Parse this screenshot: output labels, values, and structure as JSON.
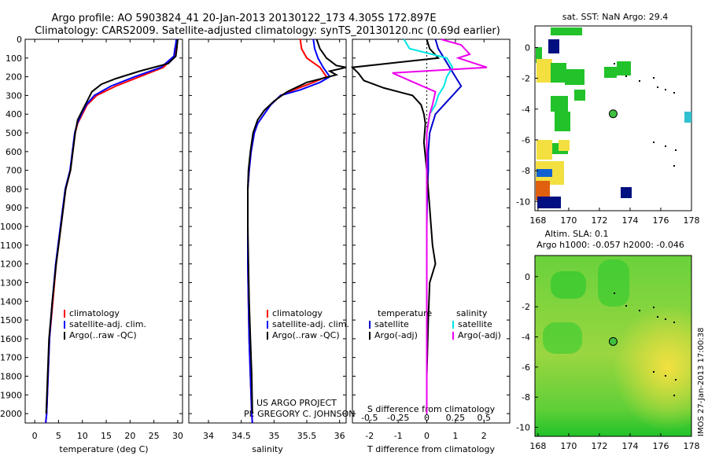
{
  "header": {
    "line1": "Argo profile: AO 5903824_41 20-Jan-2013 20130122_173 4.305S 172.897E",
    "line2": "Climatology: CARS2009. Satellite-adjusted climatology: synTS_20130120.nc (0.69d earlier)"
  },
  "side_stamp": "IMOS 27-Jan-2013 17:00:38",
  "chart_data": [
    {
      "id": "temperature",
      "type": "line",
      "xlabel": "temperature (deg C)",
      "ylabel": "",
      "xlim": [
        -2,
        31
      ],
      "ylim": [
        2050,
        0
      ],
      "xticks": [
        "0",
        "5",
        "10",
        "15",
        "20",
        "25",
        "30"
      ],
      "yticks": [
        "0",
        "100",
        "200",
        "300",
        "400",
        "500",
        "600",
        "700",
        "800",
        "900",
        "1000",
        "1100",
        "1200",
        "1300",
        "1400",
        "1500",
        "1600",
        "1700",
        "1800",
        "1900",
        "2000"
      ],
      "legend": [
        "climatology",
        "satellite-adj. clim.",
        "Argo(..raw -QC)"
      ],
      "series": [
        {
          "name": "climatology",
          "color": "#ff0000",
          "x": [
            29.8,
            29.7,
            29.5,
            29.3,
            27,
            22,
            17,
            13,
            11,
            10,
            9,
            8.5,
            8,
            7.5,
            6.5,
            5.5,
            4.5,
            3.8,
            3.1,
            2.8,
            2.5,
            2.3
          ],
          "y": [
            0,
            25,
            50,
            90,
            150,
            200,
            250,
            300,
            350,
            400,
            450,
            500,
            600,
            700,
            800,
            1000,
            1200,
            1400,
            1600,
            1800,
            2000,
            2050
          ]
        },
        {
          "name": "satellite-adj. clim.",
          "color": "#0000ff",
          "x": [
            29.7,
            29.6,
            29.4,
            29.2,
            26.5,
            21,
            16,
            12.5,
            10.8,
            9.8,
            8.9,
            8.4,
            7.9,
            7.4,
            6.4,
            5.4,
            4.4,
            3.7,
            3.1,
            2.8,
            2.5,
            2.3
          ],
          "y": [
            0,
            25,
            50,
            90,
            150,
            200,
            250,
            300,
            350,
            400,
            450,
            500,
            600,
            700,
            800,
            1000,
            1200,
            1400,
            1600,
            1800,
            2000,
            2050
          ]
        },
        {
          "name": "Argo(..raw -QC)",
          "color": "#000000",
          "x": [
            30,
            29.9,
            29.8,
            29.6,
            28,
            22,
            17,
            14,
            12,
            11,
            10,
            9,
            8.5,
            8,
            7.5,
            6.5,
            5.5,
            4.5,
            3.7,
            3,
            2.7,
            2.4
          ],
          "y": [
            0,
            25,
            50,
            90,
            130,
            170,
            210,
            240,
            280,
            330,
            380,
            430,
            500,
            600,
            700,
            800,
            1000,
            1200,
            1400,
            1600,
            1800,
            2000
          ]
        }
      ]
    },
    {
      "id": "salinity",
      "type": "line",
      "xlabel": "salinity",
      "ylabel": "",
      "xlim": [
        33.7,
        36.1
      ],
      "ylim": [
        2050,
        0
      ],
      "xticks": [
        "34",
        "34.5",
        "35",
        "35.5",
        "36"
      ],
      "legend": [
        "climatology",
        "satellite-adj. clim.",
        "Argo(..raw -QC)"
      ],
      "series": [
        {
          "name": "climatology",
          "color": "#ff0000",
          "x": [
            35.4,
            35.42,
            35.5,
            35.7,
            35.8,
            35.6,
            35.3,
            35.1,
            34.95,
            34.85,
            34.75,
            34.7,
            34.65,
            34.62,
            34.6,
            34.6,
            34.6,
            34.61,
            34.62,
            34.64,
            34.66,
            34.67
          ],
          "y": [
            0,
            50,
            100,
            150,
            200,
            230,
            270,
            300,
            350,
            400,
            450,
            500,
            600,
            700,
            800,
            1000,
            1200,
            1400,
            1600,
            1800,
            2000,
            2050
          ]
        },
        {
          "name": "satellite-adj. clim.",
          "color": "#0000ff",
          "x": [
            35.6,
            35.62,
            35.67,
            35.75,
            35.85,
            35.7,
            35.4,
            35.1,
            34.95,
            34.85,
            34.75,
            34.7,
            34.65,
            34.62,
            34.6,
            34.6,
            34.6,
            34.61,
            34.62,
            34.64,
            34.66,
            34.67
          ],
          "y": [
            0,
            50,
            100,
            150,
            200,
            230,
            270,
            300,
            350,
            400,
            450,
            500,
            600,
            700,
            800,
            1000,
            1200,
            1400,
            1600,
            1800,
            2000,
            2050
          ]
        },
        {
          "name": "Argo(..raw -QC)",
          "color": "#000000",
          "x": [
            35.65,
            35.7,
            35.8,
            35.95,
            36.1,
            35.85,
            35.95,
            35.5,
            35.2,
            35.0,
            34.85,
            34.75,
            34.68,
            34.64,
            34.61,
            34.6,
            34.6,
            34.61,
            34.62,
            34.64,
            34.66,
            34.67
          ],
          "y": [
            0,
            50,
            100,
            140,
            150,
            170,
            190,
            230,
            280,
            330,
            380,
            430,
            500,
            600,
            700,
            800,
            1000,
            1200,
            1400,
            1600,
            1800,
            2000
          ]
        }
      ],
      "annotation": [
        "US ARGO PROJECT",
        "PI: GREGORY C. JOHNSON"
      ]
    },
    {
      "id": "difference",
      "type": "line",
      "xlabel": "T difference from climatology",
      "xlabel_top": "S difference from climatology",
      "xlim": [
        -2.6,
        2.9
      ],
      "ylim": [
        2050,
        0
      ],
      "xticks": [
        "-2",
        "-1",
        "0",
        "1",
        "2"
      ],
      "xticks_s": [
        "-0.5",
        "-0.25",
        "0",
        "0.25",
        "0.5"
      ],
      "legend_t_title": "temperature",
      "legend_s_title": "salinity",
      "legend": [
        "satellite",
        "Argo(-adj)",
        "satellite",
        "Argo(-adj)"
      ],
      "series": [
        {
          "name": "T satellite",
          "color": "#0000cc",
          "x": [
            0.3,
            0.4,
            0.6,
            0.8,
            1.0,
            1.2,
            0.9,
            0.6,
            0.3,
            0.2,
            0.1,
            0.05,
            0.05,
            0.02,
            0.0,
            0,
            0,
            0,
            0,
            0
          ],
          "y": [
            0,
            50,
            100,
            150,
            200,
            250,
            300,
            350,
            400,
            450,
            500,
            600,
            700,
            800,
            1000,
            1200,
            1400,
            1600,
            1800,
            2000
          ]
        },
        {
          "name": "T Argo(-adj)",
          "color": "#000000",
          "x": [
            0,
            0.1,
            0.4,
            -2.6,
            -2.4,
            -2.2,
            -1.5,
            -0.5,
            -0.2,
            -0.1,
            -0.05,
            -0.1,
            0,
            0.1,
            0.2,
            0.3,
            0.1,
            0.05,
            0,
            0
          ],
          "y": [
            0,
            50,
            100,
            150,
            180,
            220,
            260,
            300,
            350,
            400,
            450,
            550,
            700,
            900,
            1100,
            1200,
            1300,
            1500,
            1800,
            2000
          ]
        },
        {
          "name": "S satellite",
          "color": "#00e5e5",
          "x": [
            -0.8,
            -0.6,
            0.7,
            0.9,
            0.7,
            0.6,
            0.4,
            0.3,
            0.1,
            0.05,
            0,
            0,
            0,
            0,
            0,
            0,
            0,
            0
          ],
          "y": [
            0,
            50,
            100,
            150,
            200,
            250,
            300,
            350,
            400,
            450,
            500,
            600,
            700,
            800,
            1000,
            1400,
            1800,
            2000
          ]
        },
        {
          "name": "S Argo(-adj)",
          "color": "#ee00ee",
          "x": [
            0.5,
            1.2,
            1.5,
            1.1,
            2.1,
            -1.2,
            -0.6,
            0.3,
            0.2,
            0.1,
            0.05,
            0,
            0,
            0,
            0
          ],
          "y": [
            0,
            30,
            80,
            100,
            150,
            180,
            220,
            280,
            350,
            400,
            450,
            500,
            700,
            1000,
            2000
          ]
        }
      ]
    },
    {
      "id": "sst-map",
      "type": "heatmap",
      "title": "sat. SST: NaN Argo: 29.4",
      "xticks": [
        "168",
        "170",
        "172",
        "174",
        "176",
        "178"
      ],
      "yticks": [
        "0",
        "-2",
        "-4",
        "-6",
        "-8",
        "-10"
      ],
      "xlim": [
        167.8,
        178
      ],
      "ylim": [
        -10.6,
        1.4
      ],
      "marker": {
        "lon": 172.897,
        "lat": -4.305
      }
    },
    {
      "id": "sla-map",
      "type": "heatmap",
      "title": "Altim. SLA: 0.1",
      "subtitle": "Argo h1000: -0.057 h2000: -0.046",
      "xticks": [
        "168",
        "170",
        "172",
        "174",
        "176",
        "178"
      ],
      "yticks": [
        "0",
        "-2",
        "-4",
        "-6",
        "-8",
        "-10"
      ],
      "xlim": [
        167.8,
        178
      ],
      "ylim": [
        -10.6,
        1.4
      ],
      "marker": {
        "lon": 172.897,
        "lat": -4.305
      }
    }
  ]
}
